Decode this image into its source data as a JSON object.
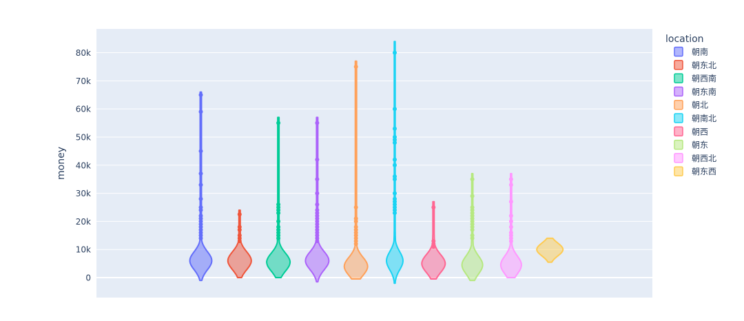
{
  "chart_data": {
    "type": "violin",
    "ylabel": "money",
    "ylim": [
      -7000,
      88000
    ],
    "y_ticks": [
      0,
      10000,
      20000,
      30000,
      40000,
      50000,
      60000,
      70000,
      80000
    ],
    "y_tick_labels": [
      "0",
      "10k",
      "20k",
      "30k",
      "40k",
      "50k",
      "60k",
      "70k",
      "80k"
    ],
    "grid": true,
    "legend_title": "location",
    "legend_position": "right",
    "series": [
      {
        "name": "朝南",
        "color": "#636efa",
        "kde_center": 6000,
        "max_half_width": 16,
        "range": [
          -1000,
          66000
        ],
        "outliers": [
          14000,
          15000,
          16000,
          17000,
          18000,
          19000,
          20000,
          21000,
          22000,
          24000,
          25000,
          28000,
          33000,
          37000,
          45000,
          59000,
          65000
        ]
      },
      {
        "name": "朝东北",
        "color": "#ef553b",
        "kde_center": 6000,
        "max_half_width": 17,
        "range": [
          0,
          24000
        ],
        "outliers": [
          13000,
          14000,
          15000,
          17000,
          18000,
          22500
        ]
      },
      {
        "name": "朝西南",
        "color": "#00cc96",
        "kde_center": 5500,
        "max_half_width": 17,
        "range": [
          0,
          57000
        ],
        "outliers": [
          14000,
          15000,
          16000,
          17000,
          18000,
          20000,
          23000,
          24000,
          25000,
          26000,
          55000
        ]
      },
      {
        "name": "朝东南",
        "color": "#ab63fa",
        "kde_center": 6000,
        "max_half_width": 17,
        "range": [
          -1500,
          57000
        ],
        "outliers": [
          13000,
          14000,
          15000,
          16000,
          17000,
          18000,
          19000,
          20000,
          21000,
          22000,
          23000,
          24000,
          26000,
          30000,
          35000,
          42000,
          55000
        ]
      },
      {
        "name": "朝北",
        "color": "#ffa15a",
        "kde_center": 4000,
        "max_half_width": 17,
        "range": [
          -500,
          77000
        ],
        "outliers": [
          12000,
          13000,
          14000,
          15000,
          16000,
          17000,
          18000,
          20000,
          21000,
          25000,
          75000
        ]
      },
      {
        "name": "朝南北",
        "color": "#19d3f3",
        "kde_center": 6000,
        "max_half_width": 12,
        "range": [
          -2000,
          84000
        ],
        "outliers": [
          23000,
          24000,
          25000,
          26000,
          27000,
          28000,
          30000,
          35000,
          36000,
          40000,
          42000,
          48000,
          49000,
          50000,
          53000,
          60000,
          80000
        ]
      },
      {
        "name": "朝西",
        "color": "#ff6692",
        "kde_center": 5000,
        "max_half_width": 17,
        "range": [
          -500,
          27000
        ],
        "outliers": [
          11000,
          12000,
          13000,
          25000
        ]
      },
      {
        "name": "朝东",
        "color": "#b6e880",
        "kde_center": 4500,
        "max_half_width": 15,
        "range": [
          -1000,
          37000
        ],
        "outliers": [
          14000,
          15000,
          17000,
          18000,
          19000,
          20000,
          21000,
          22000,
          23000,
          24000,
          25000,
          29000,
          35000
        ]
      },
      {
        "name": "朝西北",
        "color": "#ff97ff",
        "kde_center": 4500,
        "max_half_width": 15,
        "range": [
          0,
          37000
        ],
        "outliers": [
          13000,
          14000,
          15000,
          16000,
          18000,
          20000,
          22000,
          27000,
          33000,
          35000
        ]
      },
      {
        "name": "朝东西",
        "color": "#fecb52",
        "kde_center": 10000,
        "max_half_width": 19,
        "range": [
          5500,
          14000
        ],
        "outliers": []
      }
    ]
  }
}
